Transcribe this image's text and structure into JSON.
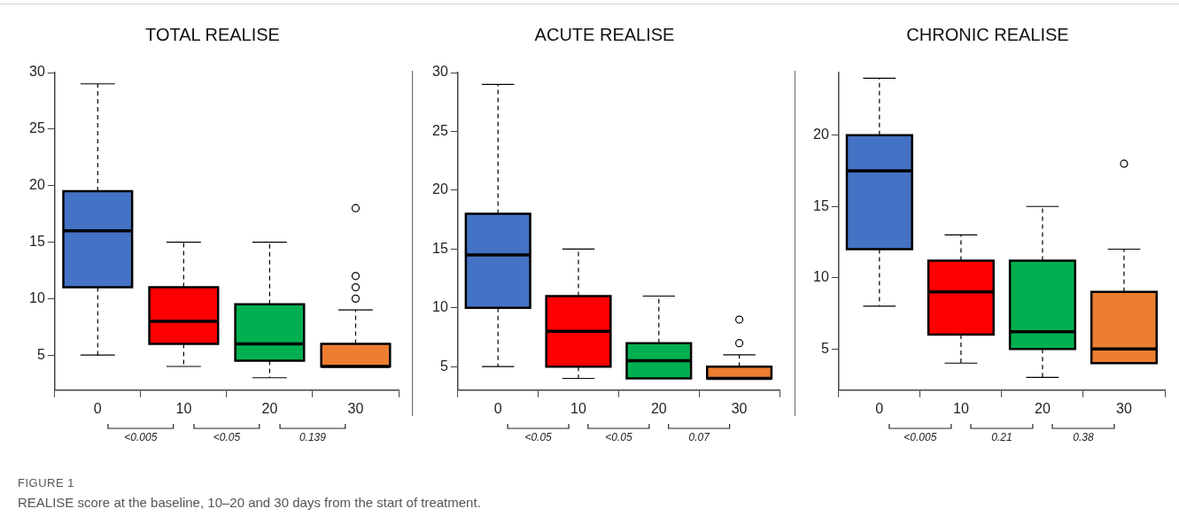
{
  "chart_data": [
    {
      "type": "box",
      "title": "TOTAL REALISE",
      "categories": [
        "0",
        "10",
        "20",
        "30"
      ],
      "colors": [
        "#4472c4",
        "#ff0000",
        "#00b050",
        "#ed7d31"
      ],
      "boxes": [
        {
          "low": 5,
          "q1": 11,
          "median": 16,
          "q3": 19.5,
          "high": 29
        },
        {
          "low": 4,
          "q1": 6,
          "median": 8,
          "q3": 11,
          "high": 15
        },
        {
          "low": 3,
          "q1": 4.5,
          "median": 6,
          "q3": 9.5,
          "high": 15
        },
        {
          "low": 4,
          "q1": 4,
          "median": 4,
          "q3": 6,
          "high": 9,
          "outliers": [
            10,
            11,
            12,
            18
          ]
        }
      ],
      "ylim": [
        1.9,
        30
      ],
      "yticks": [
        5,
        10,
        15,
        20,
        25,
        30
      ],
      "annotations": [
        "<0.005",
        "<0.05",
        "0.139"
      ]
    },
    {
      "type": "box",
      "title": "ACUTE REALISE",
      "categories": [
        "0",
        "10",
        "20",
        "30"
      ],
      "colors": [
        "#4472c4",
        "#ff0000",
        "#00b050",
        "#ed7d31"
      ],
      "boxes": [
        {
          "low": 5,
          "q1": 10,
          "median": 14.5,
          "q3": 18,
          "high": 29
        },
        {
          "low": 4,
          "q1": 5,
          "median": 8,
          "q3": 11,
          "high": 15
        },
        {
          "low": 4,
          "q1": 4,
          "median": 5.5,
          "q3": 7,
          "high": 11
        },
        {
          "low": 4,
          "q1": 4,
          "median": 4,
          "q3": 5,
          "high": 6,
          "outliers": [
            7,
            9
          ]
        }
      ],
      "ylim": [
        3,
        30
      ],
      "yticks": [
        5,
        10,
        15,
        20,
        25,
        30
      ],
      "annotations": [
        "<0.05",
        "<0.05",
        "0.07"
      ]
    },
    {
      "type": "box",
      "title": "CHRONIC REALISE",
      "categories": [
        "0",
        "10",
        "20",
        "30"
      ],
      "colors": [
        "#4472c4",
        "#ff0000",
        "#00b050",
        "#ed7d31"
      ],
      "boxes": [
        {
          "low": 8,
          "q1": 12,
          "median": 17.5,
          "q3": 20,
          "high": 24
        },
        {
          "low": 4,
          "q1": 6,
          "median": 9,
          "q3": 11.2,
          "high": 13
        },
        {
          "low": 3,
          "q1": 5,
          "median": 6.2,
          "q3": 11.2,
          "high": 15
        },
        {
          "low": 4,
          "q1": 4,
          "median": 5,
          "q3": 9,
          "high": 12,
          "outliers": [
            18
          ]
        }
      ],
      "ylim": [
        2.1,
        24.4
      ],
      "yticks": [
        5,
        10,
        15,
        20
      ],
      "annotations": [
        "<0.005",
        "0.21",
        "0.38"
      ]
    },
    {
      "type": "other",
      "title": "FIGURE 1",
      "annotations": [
        "REALISE score at the baseline, 10–20 and 30 days from the start of treatment."
      ]
    }
  ]
}
